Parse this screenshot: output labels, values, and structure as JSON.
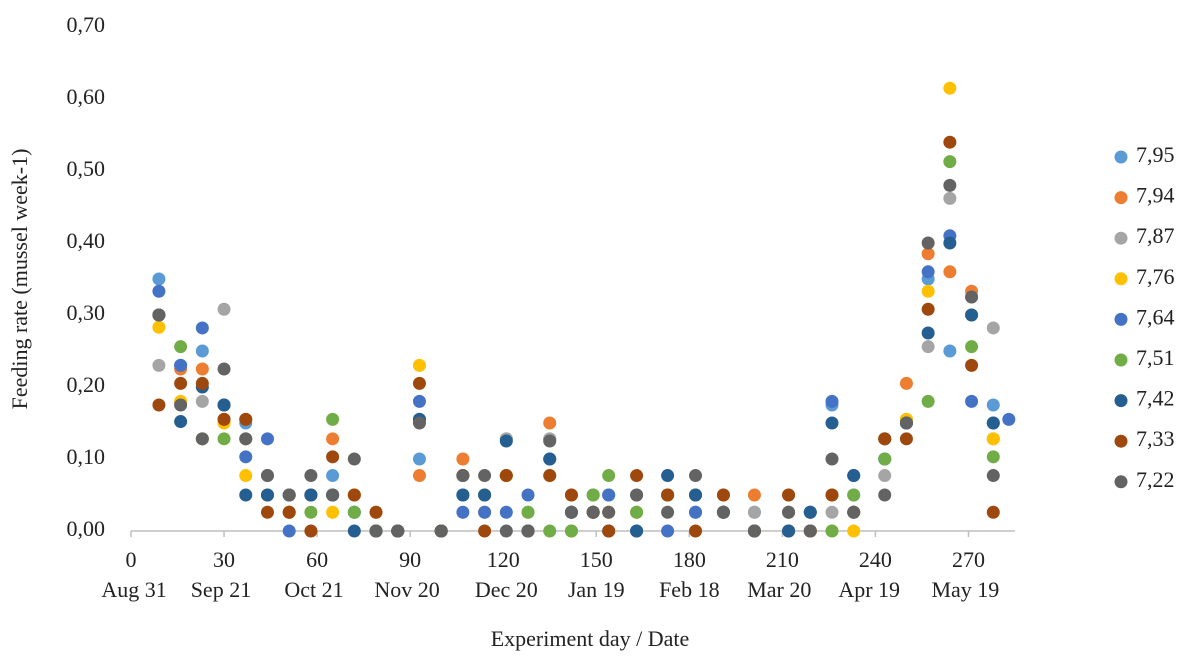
{
  "chart_data": {
    "type": "scatter",
    "xlabel": "Experiment day / Date",
    "ylabel": "Feeding rate (mussel week-1)",
    "x": [
      9,
      16,
      23,
      30,
      37,
      44,
      51,
      58,
      65,
      72,
      79,
      86,
      93,
      100,
      107,
      114,
      121,
      128,
      135,
      142,
      149,
      154,
      163,
      173,
      182,
      191,
      201,
      212,
      219,
      226,
      233,
      243,
      250,
      257,
      264,
      271,
      278,
      283
    ],
    "xlim": [
      0,
      285
    ],
    "xticks": [
      0,
      30,
      60,
      90,
      120,
      150,
      180,
      210,
      240,
      270
    ],
    "xtick_dates": [
      {
        "value": 1,
        "label": "Aug 31"
      },
      {
        "value": 29,
        "label": "Sep 21"
      },
      {
        "value": 59,
        "label": "Oct 21"
      },
      {
        "value": 89,
        "label": "Nov 20"
      },
      {
        "value": 121,
        "label": "Dec 20"
      },
      {
        "value": 150,
        "label": "Jan 19"
      },
      {
        "value": 180,
        "label": "Feb 18"
      },
      {
        "value": 209,
        "label": "Mar 20"
      },
      {
        "value": 238,
        "label": "Apr 19"
      },
      {
        "value": 269,
        "label": "May 19"
      }
    ],
    "ylim": [
      0,
      0.7
    ],
    "yticks": [
      {
        "value": 0,
        "label": "0,00"
      },
      {
        "value": 0.1,
        "label": "0,10"
      },
      {
        "value": 0.2,
        "label": "0,20"
      },
      {
        "value": 0.3,
        "label": "0,30"
      },
      {
        "value": 0.4,
        "label": "0,40"
      },
      {
        "value": 0.5,
        "label": "0,50"
      },
      {
        "value": 0.6,
        "label": "0,60"
      },
      {
        "value": 0.7,
        "label": "0,70"
      }
    ],
    "grid": false,
    "legend": "right",
    "series": [
      {
        "name": "7,95",
        "color": "#5b9bd5",
        "values": [
          0.35,
          0.23,
          0.25,
          0.175,
          0.15,
          0.05,
          0.05,
          0.05,
          0.077,
          0.026,
          0,
          0,
          0.1,
          0,
          0.05,
          0.05,
          0.128,
          0,
          0.128,
          0,
          0.05,
          0.05,
          0.026,
          0.05,
          0.026,
          0.026,
          0.026,
          0,
          0,
          0.175,
          0.05,
          0.1,
          0.15,
          0.35,
          0.25,
          0.3,
          0.175,
          null
        ]
      },
      {
        "name": "7,94",
        "color": "#ed7d31",
        "values": [
          0.3,
          0.225,
          0.225,
          0.155,
          0.155,
          0.077,
          0.026,
          0.05,
          0.128,
          0.05,
          0.026,
          0,
          0.077,
          0,
          0.1,
          0.026,
          0.077,
          0,
          0.15,
          0.05,
          0.026,
          0.026,
          0.05,
          0.05,
          0.05,
          0.05,
          0.05,
          0.05,
          0,
          0.05,
          0.026,
          0.128,
          0.205,
          0.385,
          0.36,
          0.333,
          0.128,
          null
        ]
      },
      {
        "name": "7,87",
        "color": "#a5a5a5",
        "values": [
          0.23,
          0.178,
          0.18,
          0.308,
          0.128,
          0.077,
          0.05,
          0.05,
          0.05,
          0.05,
          0,
          0,
          0.155,
          0,
          0.077,
          0.05,
          0.128,
          0.026,
          0.128,
          0.026,
          0.05,
          0.05,
          0.05,
          0.05,
          0.05,
          0.026,
          0.026,
          0.026,
          0,
          0.026,
          0.026,
          0.077,
          0.155,
          0.256,
          0.462,
          0.325,
          0.282,
          null
        ]
      },
      {
        "name": "7,76",
        "color": "#ffc000",
        "values": [
          0.283,
          0.18,
          0.128,
          0.15,
          0.077,
          0.05,
          0.026,
          0.05,
          0.026,
          0.05,
          0,
          0,
          0.23,
          0,
          0.077,
          0.05,
          0.077,
          0,
          0.077,
          0,
          0.026,
          0.026,
          0.026,
          0.05,
          0.05,
          0.026,
          0,
          0,
          0,
          0,
          0,
          0.128,
          0.155,
          0.333,
          0.615,
          0.3,
          0.128,
          null
        ]
      },
      {
        "name": "7,64",
        "color": "#4472c4",
        "values": [
          0.333,
          0.23,
          0.282,
          0.175,
          0.103,
          0.128,
          0,
          0.05,
          0.05,
          0.026,
          0,
          0,
          0.18,
          0,
          0.026,
          0.026,
          0.026,
          0.05,
          0.1,
          0.026,
          0.026,
          0.05,
          0,
          0,
          0.026,
          0.026,
          0,
          0,
          0.026,
          0.18,
          0.077,
          0.1,
          0.15,
          0.36,
          0.41,
          0.18,
          0.15,
          0.155
        ]
      },
      {
        "name": "7,51",
        "color": "#70ad47",
        "values": [
          0.3,
          0.256,
          0.128,
          0.128,
          0.128,
          0.05,
          0.026,
          0.026,
          0.155,
          0.026,
          0,
          0,
          0.155,
          0,
          0.05,
          0.05,
          0.077,
          0.026,
          0,
          0,
          0.05,
          0.077,
          0.026,
          0.05,
          0.05,
          0.026,
          0,
          0.026,
          0.026,
          0,
          0.05,
          0.1,
          0.15,
          0.18,
          0.513,
          0.256,
          0.103,
          null
        ]
      },
      {
        "name": "7,42",
        "color": "#255e91",
        "values": [
          0.3,
          0.152,
          0.2,
          0.175,
          0.05,
          0.05,
          0.05,
          0.05,
          0.05,
          0,
          0,
          0,
          0.155,
          0,
          0.05,
          0.05,
          0.125,
          0,
          0.1,
          0.026,
          0.026,
          0,
          0,
          0.077,
          0.05,
          0.026,
          0,
          0,
          0.026,
          0.15,
          0.077,
          0.128,
          0.15,
          0.275,
          0.4,
          0.3,
          0.15,
          null
        ]
      },
      {
        "name": "7,33",
        "color": "#9e480e",
        "values": [
          0.175,
          0.205,
          0.205,
          0.155,
          0.155,
          0.026,
          0.026,
          0,
          0.103,
          0.05,
          0.026,
          0,
          0.205,
          0,
          0.077,
          0,
          0.077,
          0,
          0.077,
          0.05,
          0.026,
          0,
          0.077,
          0.05,
          0,
          0.05,
          0,
          0.05,
          0,
          0.05,
          0.026,
          0.128,
          0.128,
          0.308,
          0.54,
          0.23,
          0.026,
          null
        ]
      },
      {
        "name": "7,22",
        "color": "#636363",
        "values": [
          0.3,
          0.175,
          0.128,
          0.225,
          0.128,
          0.077,
          0.05,
          0.077,
          0.05,
          0.1,
          0,
          0,
          0.15,
          0,
          0.077,
          0.077,
          0,
          0,
          0.125,
          0.026,
          0.026,
          0.026,
          0.05,
          0.026,
          0.077,
          0.026,
          0,
          0.026,
          0,
          0.1,
          0.026,
          0.05,
          0.15,
          0.4,
          0.48,
          0.325,
          0.077,
          null
        ]
      }
    ]
  }
}
